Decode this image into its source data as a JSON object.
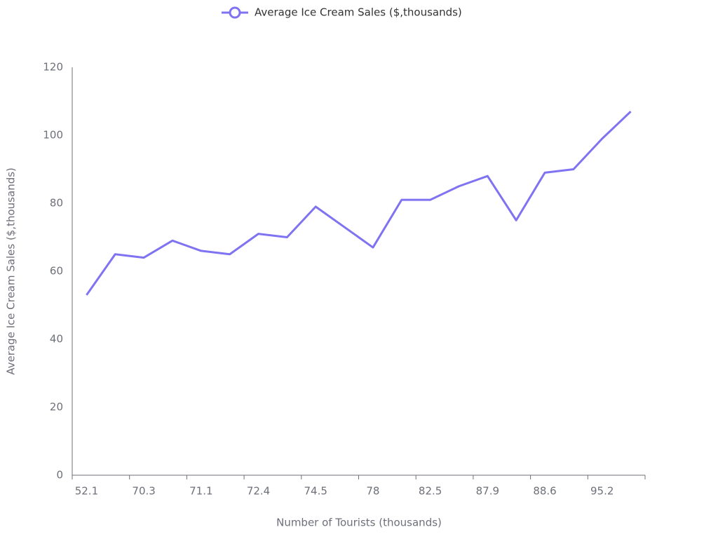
{
  "chart_data": {
    "type": "line",
    "x_label": "Number of Tourists (thousands)",
    "y_label": "Average Ice Cream Sales ($,thousands)",
    "categories": [
      "52.1",
      null,
      "70.3",
      null,
      "71.1",
      null,
      "72.4",
      null,
      "74.5",
      null,
      "78",
      null,
      "82.5",
      null,
      "87.9",
      null,
      "88.6",
      null,
      "95.2",
      null
    ],
    "series": [
      {
        "name": "Average Ice Cream Sales ($,thousands)",
        "color": "#7f73f2",
        "values": [
          53,
          65,
          64,
          69,
          66,
          65,
          71,
          70,
          79,
          73,
          67,
          81,
          81,
          85,
          88,
          75,
          89,
          90,
          99,
          107
        ]
      }
    ],
    "ylim": [
      0,
      120
    ],
    "yticks": [
      0,
      20,
      40,
      60,
      80,
      100,
      120
    ],
    "grid": false,
    "legend": "top"
  }
}
